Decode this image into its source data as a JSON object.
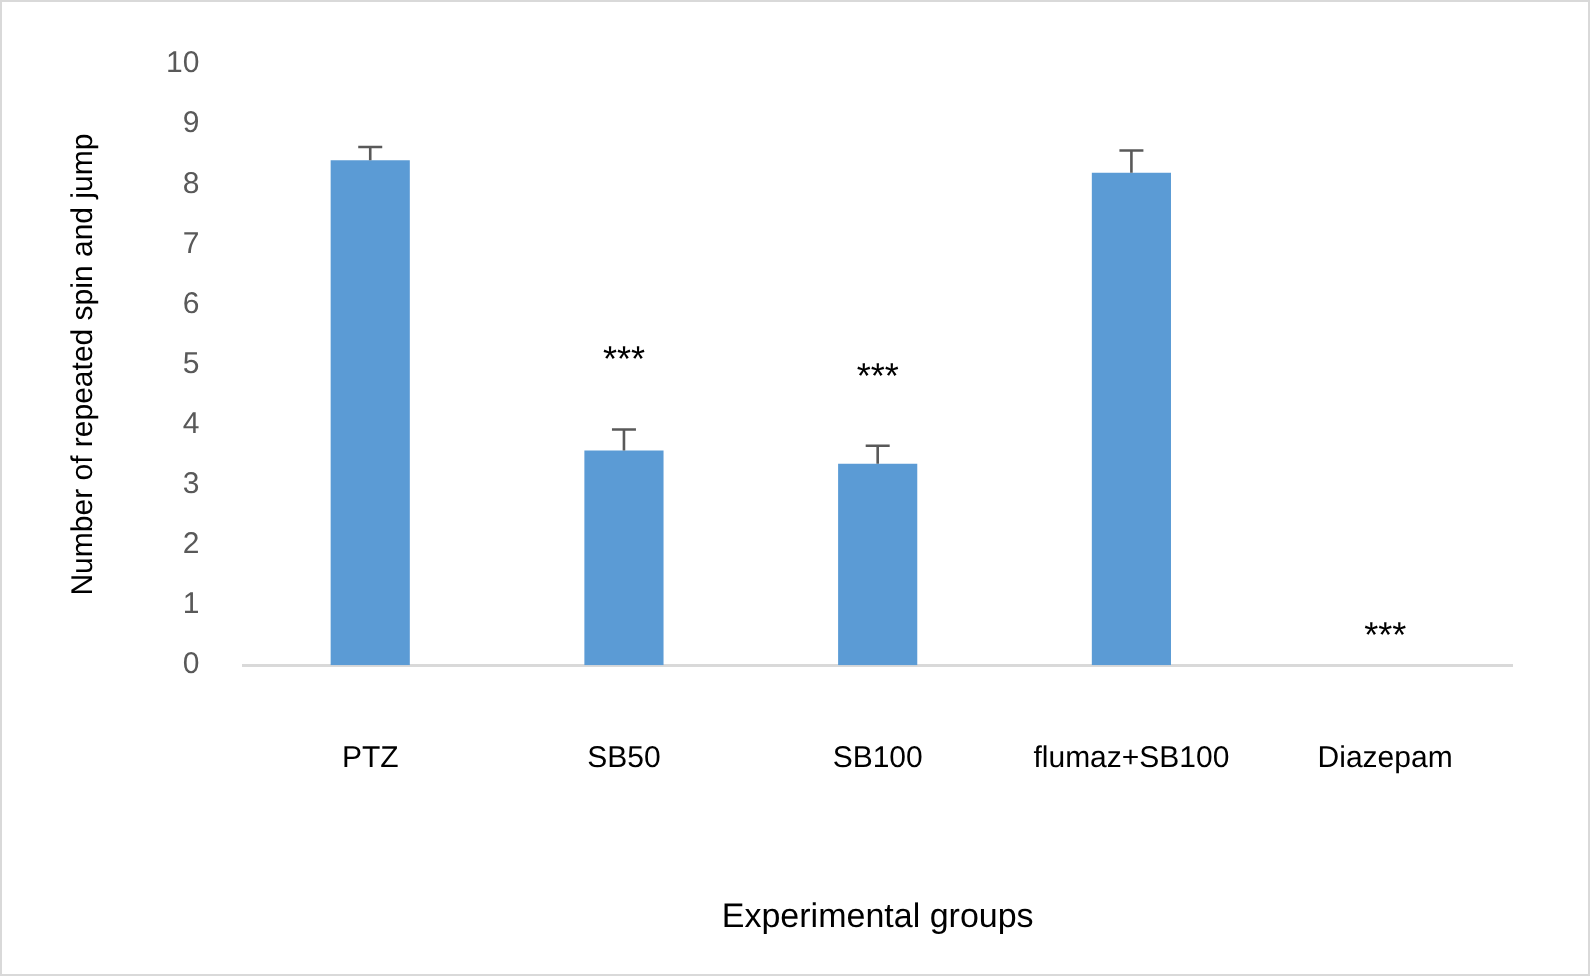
{
  "chart_data": {
    "type": "bar",
    "xlabel": "Experimental groups",
    "ylabel": "Number of repeated spin and jump",
    "categories": [
      "PTZ",
      "SB50",
      "SB100",
      "flumaz+SB100",
      "Diazepam"
    ],
    "values": [
      8.4,
      3.57,
      3.35,
      8.19,
      0
    ],
    "errors": [
      [
        8.4,
        8.62
      ],
      [
        3.57,
        3.92
      ],
      [
        3.35,
        3.65
      ],
      [
        8.19,
        8.56
      ],
      null
    ],
    "color": "#5b9bd5",
    "ylim": [
      0,
      10
    ],
    "yticks": [
      0,
      1,
      2,
      3,
      4,
      5,
      6,
      7,
      8,
      9,
      10
    ],
    "grid": false,
    "annotations": [
      {
        "text": "***",
        "x": "SB50",
        "y": 3.57
      },
      {
        "text": "***",
        "x": "SB100",
        "y": 3.35
      },
      {
        "text": "***",
        "x": "Diazepam",
        "y": 0
      }
    ]
  }
}
